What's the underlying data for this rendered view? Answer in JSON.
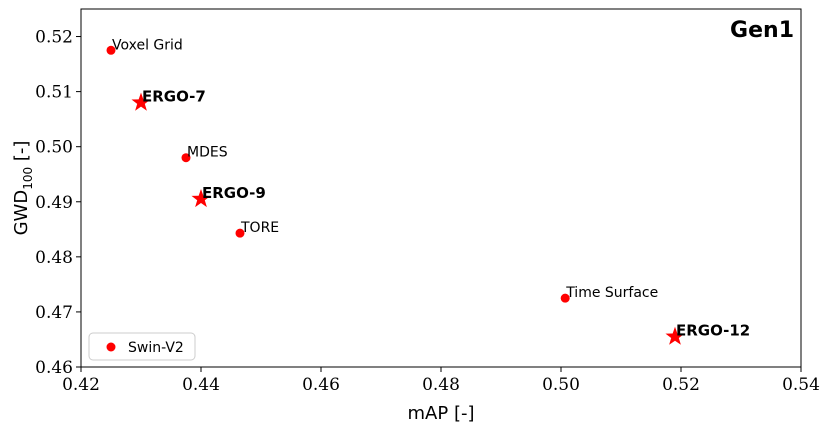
{
  "chart_data": {
    "type": "scatter",
    "corner_label": "Gen1",
    "xlabel": "mAP [-]",
    "ylabel_main": "GWD",
    "ylabel_sub": "100",
    "ylabel_suffix": " [-]",
    "xlim": [
      0.42,
      0.54
    ],
    "ylim": [
      0.46,
      0.525
    ],
    "xticks": [
      0.42,
      0.44,
      0.46,
      0.48,
      0.5,
      0.52,
      0.54
    ],
    "xtick_labels": [
      "0.42",
      "0.44",
      "0.46",
      "0.48",
      "0.50",
      "0.52",
      "0.54"
    ],
    "yticks": [
      0.46,
      0.47,
      0.48,
      0.49,
      0.5,
      0.51,
      0.52
    ],
    "ytick_labels": [
      "0.46",
      "0.47",
      "0.48",
      "0.49",
      "0.50",
      "0.51",
      "0.52"
    ],
    "legend": {
      "entries": [
        {
          "name": "Swin-V2",
          "marker": "circle"
        }
      ],
      "placement": "lower-left"
    },
    "color": "#ff0000",
    "points": [
      {
        "label": "Voxel Grid",
        "x": 0.425,
        "y": 0.5175,
        "marker": "circle",
        "bold": false
      },
      {
        "label": "ERGO-7",
        "x": 0.43,
        "y": 0.508,
        "marker": "star",
        "bold": true
      },
      {
        "label": "MDES",
        "x": 0.4375,
        "y": 0.498,
        "marker": "circle",
        "bold": false
      },
      {
        "label": "ERGO-9",
        "x": 0.44,
        "y": 0.4905,
        "marker": "star",
        "bold": true
      },
      {
        "label": "TORE",
        "x": 0.4465,
        "y": 0.4843,
        "marker": "circle",
        "bold": false
      },
      {
        "label": "Time Surface",
        "x": 0.5007,
        "y": 0.4725,
        "marker": "circle",
        "bold": false
      },
      {
        "label": "ERGO-12",
        "x": 0.519,
        "y": 0.4655,
        "marker": "star",
        "bold": true
      }
    ]
  }
}
